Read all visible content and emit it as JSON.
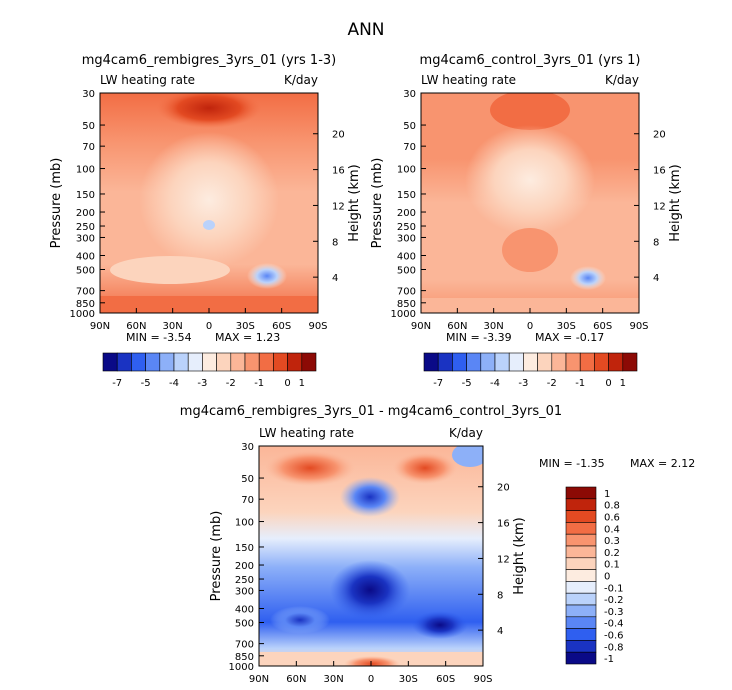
{
  "figure_title": "ANN",
  "chart_data": [
    {
      "type": "heatmap",
      "title": "mg4cam6_rembigres_3yrs_01 (yrs 1-3)",
      "variable_label": "LW heating rate",
      "units_label": "K/day",
      "xlabel": "",
      "ylabel": "Pressure (mb)",
      "y2label": "Height (km)",
      "x_ticks": [
        "90N",
        "60N",
        "30N",
        "0",
        "30S",
        "60S",
        "90S"
      ],
      "pressure_ticks": [
        30,
        50,
        70,
        100,
        150,
        200,
        250,
        300,
        400,
        500,
        700,
        850,
        1000
      ],
      "height_ticks": [
        20,
        16,
        12,
        8,
        4
      ],
      "ylim": [
        30,
        1000
      ],
      "min_label": "MIN = -3.54",
      "max_label": "MAX = 1.23",
      "min": -3.54,
      "max": 1.23
    },
    {
      "type": "heatmap",
      "title": "mg4cam6_control_3yrs_01 (yrs 1)",
      "variable_label": "LW heating rate",
      "units_label": "K/day",
      "xlabel": "",
      "ylabel": "Pressure (mb)",
      "y2label": "Height (km)",
      "x_ticks": [
        "90N",
        "60N",
        "30N",
        "0",
        "30S",
        "60S",
        "90S"
      ],
      "pressure_ticks": [
        30,
        50,
        70,
        100,
        150,
        200,
        250,
        300,
        400,
        500,
        700,
        850,
        1000
      ],
      "height_ticks": [
        20,
        16,
        12,
        8,
        4
      ],
      "ylim": [
        30,
        1000
      ],
      "min_label": "MIN = -3.39",
      "max_label": "MAX = -0.17",
      "min": -3.39,
      "max": -0.17
    },
    {
      "type": "heatmap",
      "title": "mg4cam6_rembigres_3yrs_01 - mg4cam6_control_3yrs_01",
      "variable_label": "LW heating rate",
      "units_label": "K/day",
      "xlabel": "",
      "ylabel": "Pressure (mb)",
      "y2label": "Height (km)",
      "x_ticks": [
        "90N",
        "60N",
        "30N",
        "0",
        "30S",
        "60S",
        "90S"
      ],
      "pressure_ticks": [
        30,
        50,
        70,
        100,
        150,
        200,
        250,
        300,
        400,
        500,
        700,
        850,
        1000
      ],
      "height_ticks": [
        20,
        16,
        12,
        8,
        4
      ],
      "ylim": [
        30,
        1000
      ],
      "min_label": "MIN = -1.35",
      "max_label": "MAX = 2.12",
      "min": -1.35,
      "max": 2.12
    }
  ],
  "colorbar_top": {
    "orientation": "horizontal",
    "colors": [
      "#0a0a87",
      "#1a33c2",
      "#2f5ff0",
      "#5a86f5",
      "#8db0f8",
      "#bad2fb",
      "#e6eefc",
      "#fdece0",
      "#fcd4bd",
      "#fbb698",
      "#f8946f",
      "#f26d44",
      "#e34a22",
      "#c0240c",
      "#8c0a05"
    ],
    "labels": [
      "-7",
      "-5",
      "-4",
      "-3",
      "-2",
      "-1",
      "0",
      "1"
    ]
  },
  "colorbar_diff": {
    "orientation": "vertical",
    "colors": [
      "#0a0a87",
      "#1a33c2",
      "#2f5ff0",
      "#5a86f5",
      "#8db0f8",
      "#bad2fb",
      "#e6eefc",
      "#fdece0",
      "#fcd4bd",
      "#fbb698",
      "#f8946f",
      "#f26d44",
      "#e34a22",
      "#c0240c",
      "#8c0a05"
    ],
    "labels": [
      "1",
      "0.8",
      "0.6",
      "0.4",
      "0.3",
      "0.2",
      "0.1",
      "0",
      "-0.1",
      "-0.2",
      "-0.3",
      "-0.4",
      "-0.6",
      "-0.8",
      "-1"
    ]
  }
}
